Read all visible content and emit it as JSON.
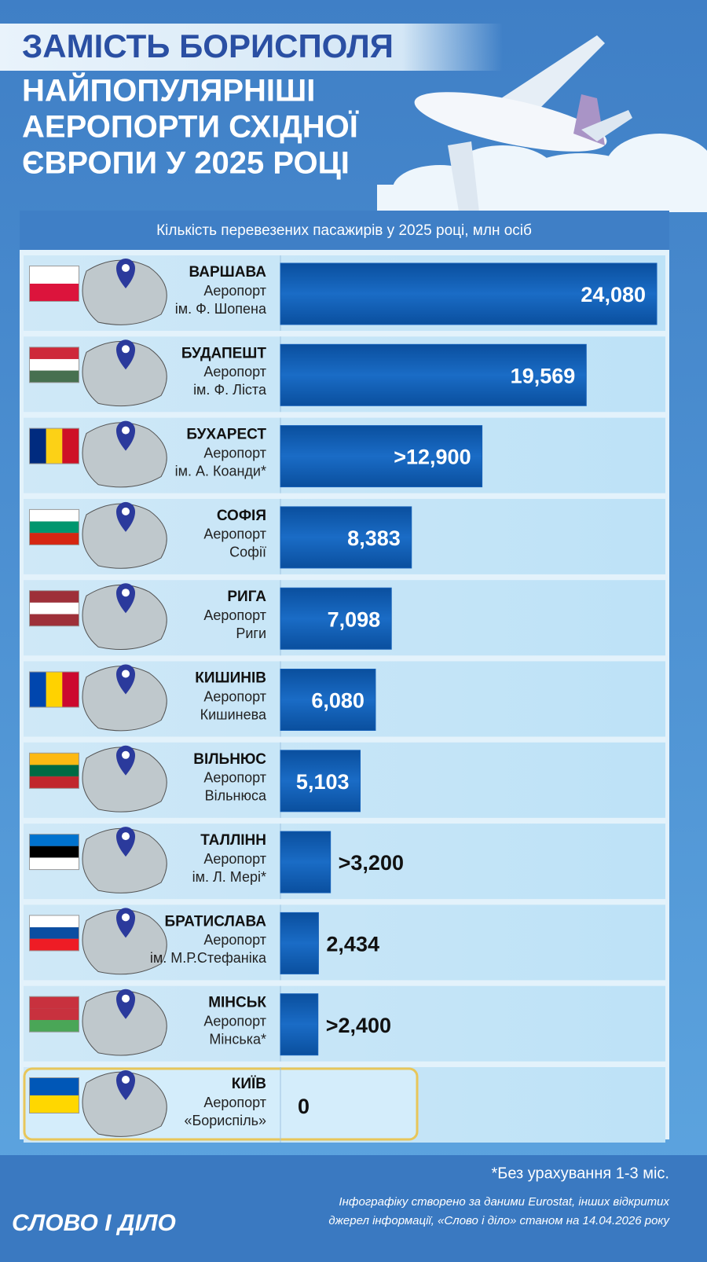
{
  "chart_data": {
    "type": "bar",
    "orientation": "horizontal",
    "title": "ЗАМІСТЬ БОРИСПОЛЯ",
    "subtitle_lines": [
      "НАЙПОПУЛЯРНІШІ",
      "АЕРОПОРТИ СХІДНОЇ",
      "ЄВРОПИ У 2025 РОЦІ"
    ],
    "value_axis_label": "Кількість перевезених пасажирів у 2025 році, млн осіб",
    "categories": [
      "ВАРШАВА",
      "БУДАПЕШТ",
      "БУХАРЕСТ",
      "СОФІЯ",
      "РИГА",
      "КИШИНІВ",
      "ВІЛЬНЮС",
      "ТАЛЛІНН",
      "БРАТИСЛАВА",
      "МІНСЬК",
      "КИЇВ"
    ],
    "airports": [
      [
        "Аеропорт",
        "ім. Ф. Шопена"
      ],
      [
        "Аеропорт",
        "ім. Ф. Ліста"
      ],
      [
        "Аеропорт",
        "ім. А. Коанди*"
      ],
      [
        "Аеропорт",
        "Софії"
      ],
      [
        "Аеропорт",
        "Риги"
      ],
      [
        "Аеропорт",
        "Кишинева"
      ],
      [
        "Аеропорт",
        "Вільнюса"
      ],
      [
        "Аеропорт",
        "ім. Л. Мері*"
      ],
      [
        "Аеропорт",
        "ім. М.Р.Стефаніка"
      ],
      [
        "Аеропорт",
        "Мінська*"
      ],
      [
        "Аеропорт",
        "«Бориспіль»"
      ]
    ],
    "values": [
      24.08,
      19.569,
      12.9,
      8.383,
      7.098,
      6.08,
      5.103,
      3.2,
      2.434,
      2.4,
      0
    ],
    "value_labels": [
      "24,080",
      "19,569",
      ">12,900",
      "8,383",
      "7,098",
      "6,080",
      "5,103",
      ">3,200",
      "2,434",
      ">2,400",
      "0"
    ],
    "color": "#1560b8",
    "footnote": "*Без урахування 1-3 міс.",
    "logo": "СЛОВО І ДІЛО",
    "source_lines": [
      "Інфографіку створено за даними Eurostat, інших відкритих",
      "джерел інформації, «Слово і діло» станом на 14.04.2026 року"
    ]
  }
}
